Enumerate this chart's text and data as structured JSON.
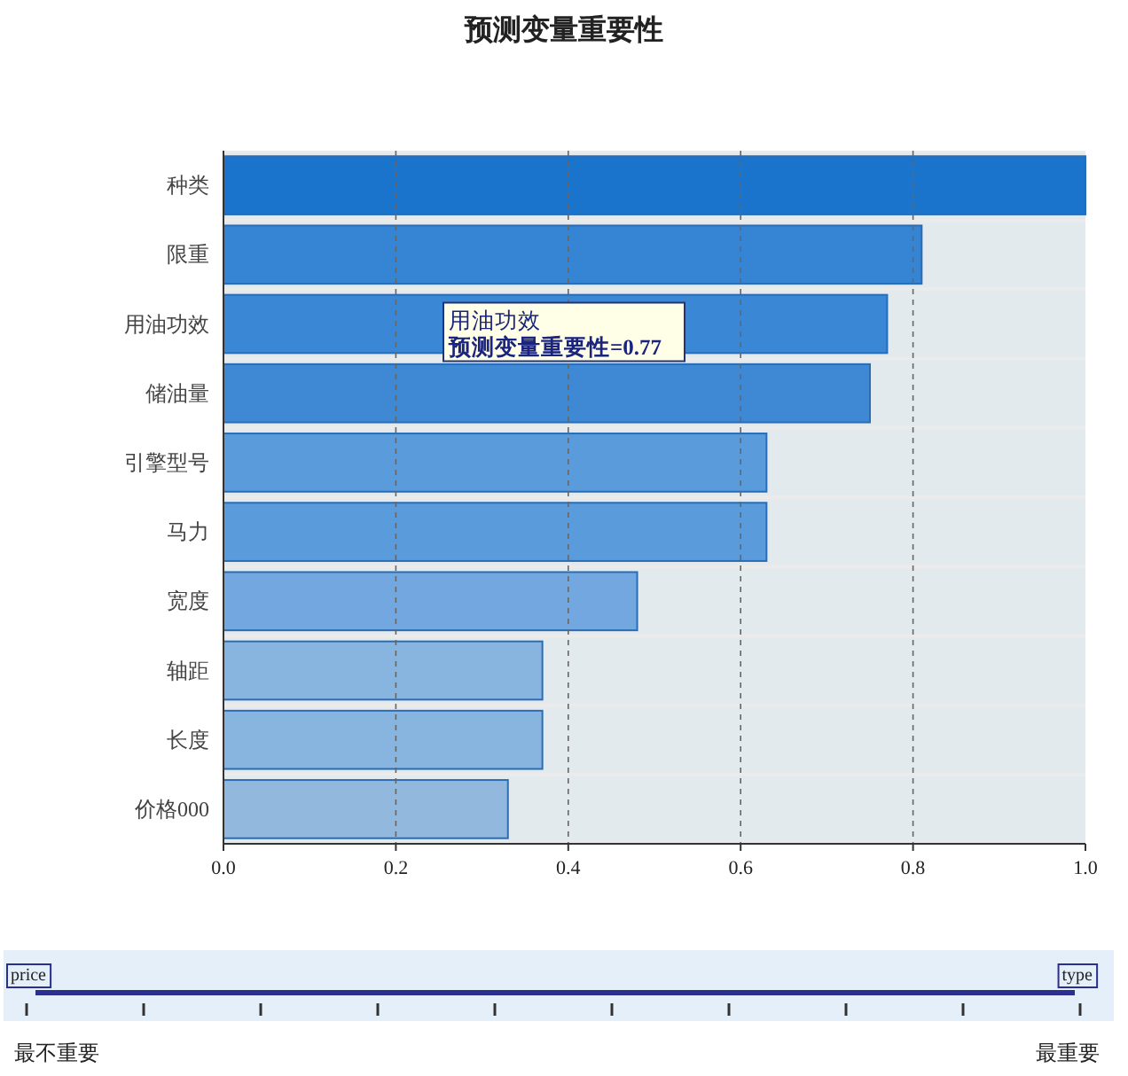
{
  "chart_data": {
    "type": "bar",
    "orientation": "horizontal",
    "title": "预测变量重要性",
    "categories": [
      "种类",
      "限重",
      "用油功效",
      "储油量",
      "引擎型号",
      "马力",
      "宽度",
      "轴距",
      "长度",
      "价格000"
    ],
    "values": [
      1.0,
      0.81,
      0.77,
      0.75,
      0.63,
      0.63,
      0.48,
      0.37,
      0.37,
      0.33
    ],
    "colors": [
      "#1b74cc",
      "#3585d4",
      "#3a88d5",
      "#3f88d3",
      "#5a9bdb",
      "#5a9bdb",
      "#72a8df",
      "#88b4e0",
      "#88b4e0",
      "#92b8de"
    ],
    "xlim": [
      0,
      1
    ],
    "xticks": [
      {
        "value": 0,
        "label": "0.0"
      },
      {
        "value": 0.2,
        "label": "0.2"
      },
      {
        "value": 0.4,
        "label": "0.4"
      },
      {
        "value": 0.6,
        "label": "0.6"
      },
      {
        "value": 0.8,
        "label": "0.8"
      },
      {
        "value": 1,
        "label": "1.0"
      }
    ],
    "grid": "x",
    "annotations": [
      "用油功效",
      "预测变量重要性=0.77",
      "price",
      "type",
      "最不重要",
      "最重要"
    ]
  }
}
